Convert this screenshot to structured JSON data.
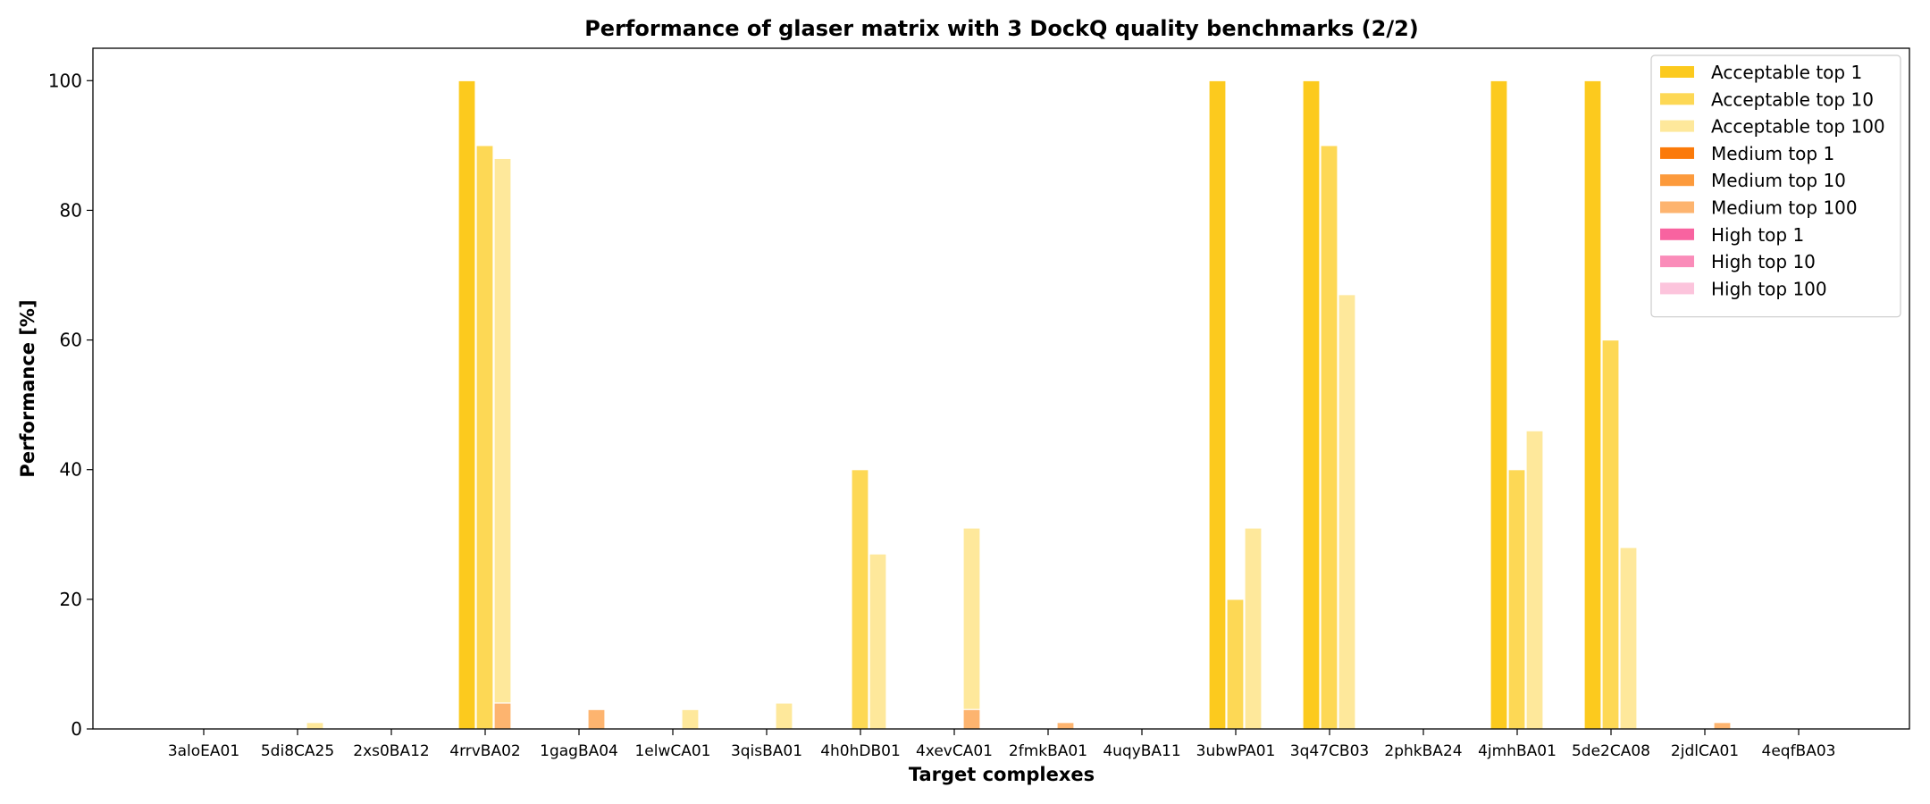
{
  "chart_data": {
    "type": "bar",
    "title": "Performance of glaser matrix with 3 DockQ quality benchmarks (2/2)",
    "xlabel": "Target complexes",
    "ylabel": "Performance [%]",
    "ylim": [
      0,
      105
    ],
    "yticks": [
      0,
      20,
      40,
      60,
      80,
      100
    ],
    "grid": false,
    "legend_position": "top-right",
    "categories": [
      "3aloEA01",
      "5di8CA25",
      "2xs0BA12",
      "4rrvBA02",
      "1gagBA04",
      "1elwCA01",
      "3qisBA01",
      "4h0hDB01",
      "4xevCA01",
      "2fmkBA01",
      "4uqyBA11",
      "3ubwPA01",
      "3q47CB03",
      "2phkBA24",
      "4jmhBA01",
      "5de2CA08",
      "2jdlCA01",
      "4eqfBA03"
    ],
    "series": [
      {
        "name": "Acceptable top 1",
        "color": "#fcca1e",
        "slot": 0,
        "values": [
          0,
          0,
          0,
          100,
          0,
          0,
          0,
          0,
          0,
          0,
          0,
          100,
          100,
          0,
          100,
          100,
          0,
          0
        ]
      },
      {
        "name": "Acceptable top 10",
        "color": "#fdd855",
        "slot": 1,
        "values": [
          0,
          0,
          0,
          90,
          0,
          0,
          0,
          40,
          0,
          0,
          0,
          20,
          90,
          0,
          40,
          60,
          0,
          0
        ]
      },
      {
        "name": "Acceptable top 100",
        "color": "#fee89b",
        "slot": 2,
        "values": [
          0,
          1,
          0,
          88,
          0,
          3,
          4,
          27,
          31,
          0,
          0,
          31,
          67,
          0,
          46,
          28,
          0,
          0
        ]
      },
      {
        "name": "Medium top 1",
        "color": "#fb7a0a",
        "slot": 0,
        "values": [
          0,
          0,
          0,
          0,
          0,
          0,
          0,
          0,
          0,
          0,
          0,
          0,
          0,
          0,
          0,
          0,
          0,
          0
        ]
      },
      {
        "name": "Medium top 10",
        "color": "#fc9a3c",
        "slot": 1,
        "values": [
          0,
          0,
          0,
          0,
          0,
          0,
          0,
          0,
          0,
          0,
          0,
          0,
          0,
          0,
          0,
          0,
          0,
          0
        ]
      },
      {
        "name": "Medium top 100",
        "color": "#fdb46f",
        "slot": 2,
        "values": [
          0,
          0,
          0,
          4,
          3,
          0,
          0,
          0,
          3,
          1,
          0,
          0,
          0,
          0,
          0,
          0,
          1,
          0
        ]
      },
      {
        "name": "High top 1",
        "color": "#f863a0",
        "slot": 0,
        "values": [
          0,
          0,
          0,
          0,
          0,
          0,
          0,
          0,
          0,
          0,
          0,
          0,
          0,
          0,
          0,
          0,
          0,
          0
        ]
      },
      {
        "name": "High top 10",
        "color": "#fa8cb9",
        "slot": 1,
        "values": [
          0,
          0,
          0,
          0,
          0,
          0,
          0,
          0,
          0,
          0,
          0,
          0,
          0,
          0,
          0,
          0,
          0,
          0
        ]
      },
      {
        "name": "High top 100",
        "color": "#fcc4dc",
        "slot": 2,
        "values": [
          0,
          0,
          0,
          0,
          0,
          0,
          0,
          0,
          0,
          0,
          0,
          0,
          0,
          0,
          0,
          0,
          0,
          0
        ]
      }
    ]
  }
}
